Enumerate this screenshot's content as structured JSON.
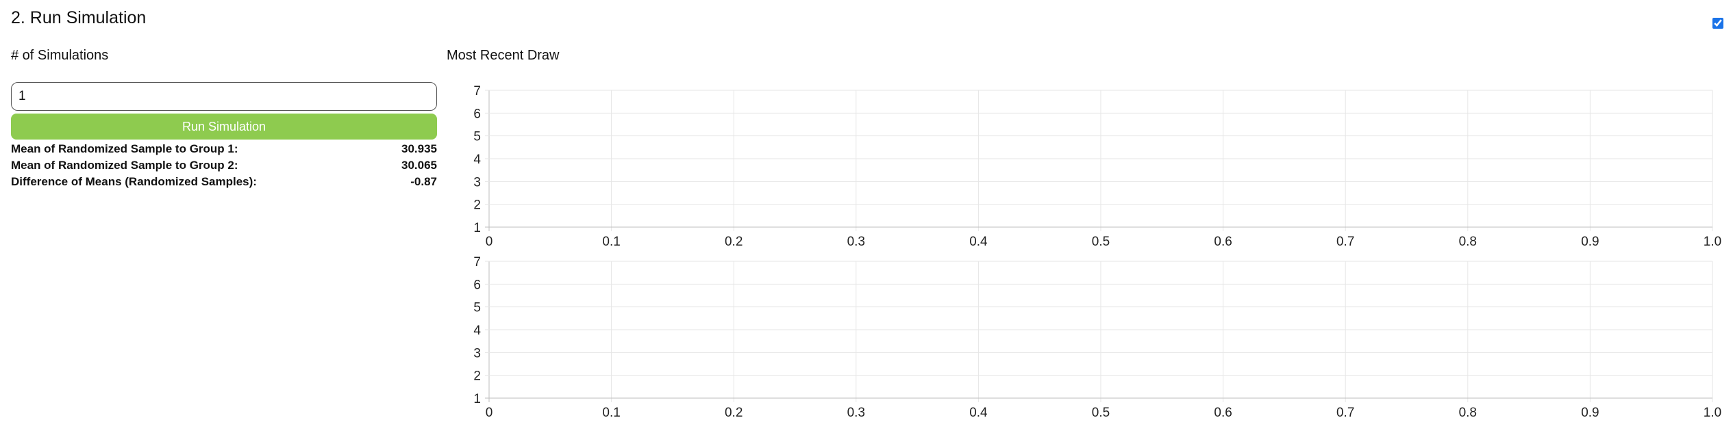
{
  "section": {
    "title": "2. Run Simulation",
    "toggle_checked": true
  },
  "controls": {
    "sim_count_label": "# of Simulations",
    "sim_count_value": "1",
    "run_button_label": "Run Simulation"
  },
  "stats": [
    {
      "label": "Mean of Randomized Sample to Group 1:",
      "value": "30.935"
    },
    {
      "label": "Mean of Randomized Sample to Group 2:",
      "value": "30.065"
    },
    {
      "label": "Difference of Means (Randomized Samples):",
      "value": "-0.87"
    }
  ],
  "chart_heading": "Most Recent Draw",
  "colors": {
    "run_button": "#8ecb4f",
    "grid": "#e6e6e6",
    "axis": "#bdbdbd"
  },
  "chart_data": [
    {
      "type": "scatter",
      "title": "",
      "xlabel": "",
      "ylabel": "",
      "xlim": [
        0,
        1.0
      ],
      "ylim": [
        1,
        7
      ],
      "x_ticks": [
        "0",
        "0.1",
        "0.2",
        "0.3",
        "0.4",
        "0.5",
        "0.6",
        "0.7",
        "0.8",
        "0.9",
        "1.0"
      ],
      "y_ticks": [
        "1",
        "2",
        "3",
        "4",
        "5",
        "6",
        "7"
      ],
      "grid": true,
      "series": []
    },
    {
      "type": "scatter",
      "title": "",
      "xlabel": "",
      "ylabel": "",
      "xlim": [
        0,
        1.0
      ],
      "ylim": [
        1,
        7
      ],
      "x_ticks": [
        "0",
        "0.1",
        "0.2",
        "0.3",
        "0.4",
        "0.5",
        "0.6",
        "0.7",
        "0.8",
        "0.9",
        "1.0"
      ],
      "y_ticks": [
        "1",
        "2",
        "3",
        "4",
        "5",
        "6",
        "7"
      ],
      "grid": true,
      "series": []
    }
  ]
}
